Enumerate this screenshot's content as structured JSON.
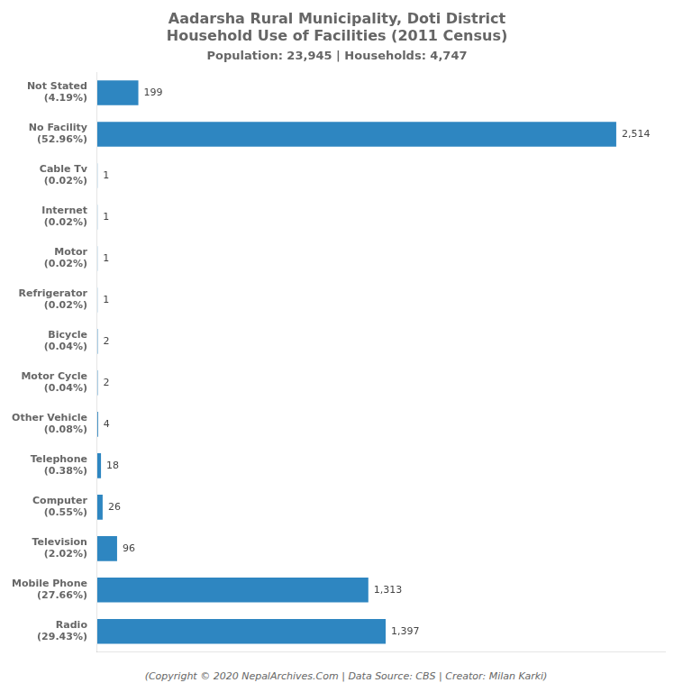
{
  "chart_data": {
    "type": "bar",
    "orientation": "horizontal",
    "title": "Aadarsha Rural Municipality, Doti District\nHousehold Use of Facilities (2011 Census)",
    "subtitle": "Population: 23,945 | Households: 4,747",
    "footer": "(Copyright © 2020 NepalArchives.Com | Data Source: CBS | Creator: Milan Karki)",
    "categories": [
      "Radio\n(29.43%)",
      "Mobile Phone\n(27.66%)",
      "Television\n(2.02%)",
      "Computer\n(0.55%)",
      "Telephone\n(0.38%)",
      "Other Vehicle\n(0.08%)",
      "Motor Cycle\n(0.04%)",
      "Bicycle\n(0.04%)",
      "Refrigerator\n(0.02%)",
      "Motor\n(0.02%)",
      "Internet\n(0.02%)",
      "Cable Tv\n(0.02%)",
      "No Facility\n(52.96%)",
      "Not Stated\n(4.19%)"
    ],
    "values": [
      1397,
      1313,
      96,
      26,
      18,
      4,
      2,
      2,
      1,
      1,
      1,
      1,
      2514,
      199
    ],
    "value_labels": [
      "1,397",
      "1,313",
      "96",
      "26",
      "18",
      "4",
      "2",
      "2",
      "1",
      "1",
      "1",
      "1",
      "2,514",
      "199"
    ],
    "color": "#2e86c1",
    "xlim": [
      0,
      2750
    ],
    "data_labels": true,
    "tick_labels": "y",
    "grid": false
  }
}
